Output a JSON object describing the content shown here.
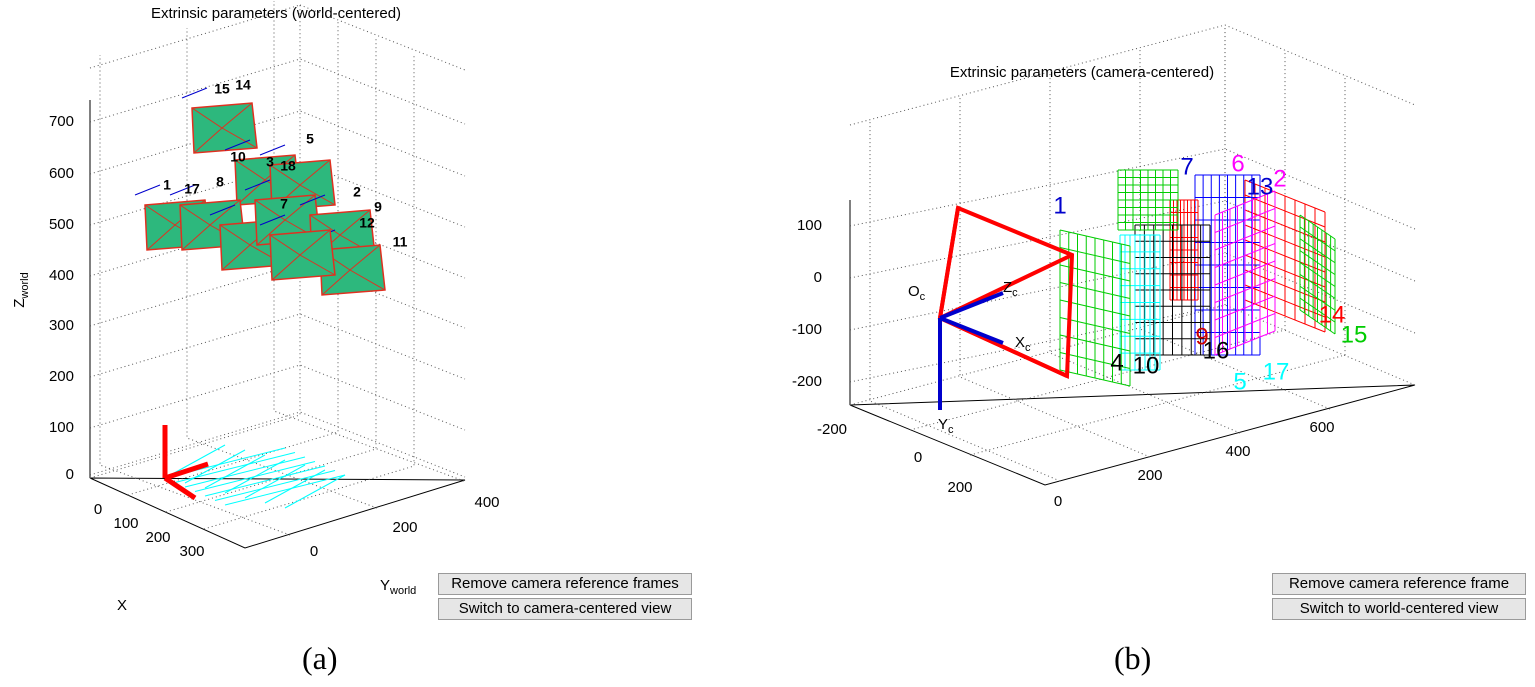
{
  "panel_a": {
    "title": "Extrinsic parameters (world-centered)",
    "z_label": {
      "text": "Z",
      "sub": "world"
    },
    "y_label": {
      "text": "Y",
      "sub": "world"
    },
    "x_label": "X",
    "z_ticks": [
      "0",
      "100",
      "200",
      "300",
      "400",
      "500",
      "600",
      "700"
    ],
    "x_ticks": [
      "0",
      "100",
      "200",
      "300"
    ],
    "y_ticks": [
      "0",
      "200",
      "400"
    ],
    "camera_labels": [
      "15",
      "14",
      "5",
      "10",
      "3",
      "18",
      "1",
      "17",
      "8",
      "2",
      "7",
      "9",
      "12",
      "11"
    ],
    "buttons": [
      "Remove camera reference frames",
      "Switch to camera-centered view"
    ],
    "caption": "(a)"
  },
  "panel_b": {
    "title": "Extrinsic parameters (camera-centered)",
    "z_ticks": [
      "100",
      "0",
      "-100",
      "-200"
    ],
    "x_ticks": [
      "-200",
      "0",
      "200"
    ],
    "y_ticks": [
      "0",
      "200",
      "400",
      "600"
    ],
    "frame_labels": [
      {
        "text": "O",
        "sub": "c"
      },
      {
        "text": "Z",
        "sub": "c"
      },
      {
        "text": "X",
        "sub": "c"
      },
      {
        "text": "Y",
        "sub": "c"
      }
    ],
    "camera_labels": [
      "1",
      "7",
      "6",
      "13",
      "2",
      "14",
      "15",
      "4",
      "10",
      "9",
      "16",
      "5",
      "17"
    ],
    "buttons": [
      "Remove camera reference frame",
      "Switch to world-centered view"
    ],
    "caption": "(b)"
  }
}
